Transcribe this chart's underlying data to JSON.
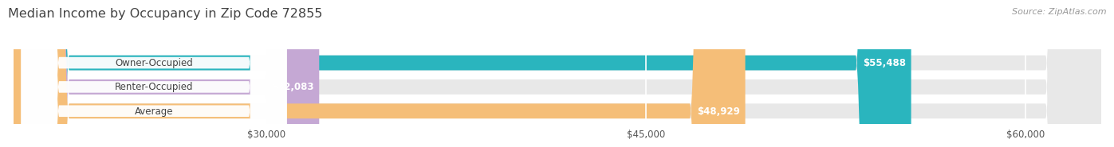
{
  "title": "Median Income by Occupancy in Zip Code 72855",
  "source": "Source: ZipAtlas.com",
  "categories": [
    "Owner-Occupied",
    "Renter-Occupied",
    "Average"
  ],
  "values": [
    55488,
    32083,
    48929
  ],
  "bar_colors": [
    "#2ab5be",
    "#c5a8d4",
    "#f5be78"
  ],
  "bar_labels": [
    "$55,488",
    "$32,083",
    "$48,929"
  ],
  "xmin": 20000,
  "xmax": 63000,
  "xticks": [
    30000,
    45000,
    60000
  ],
  "xtick_labels": [
    "$30,000",
    "$45,000",
    "$60,000"
  ],
  "background_color": "#ffffff",
  "bar_bg_color": "#e8e8e8",
  "title_color": "#444444",
  "source_color": "#999999",
  "label_color": "#555555"
}
